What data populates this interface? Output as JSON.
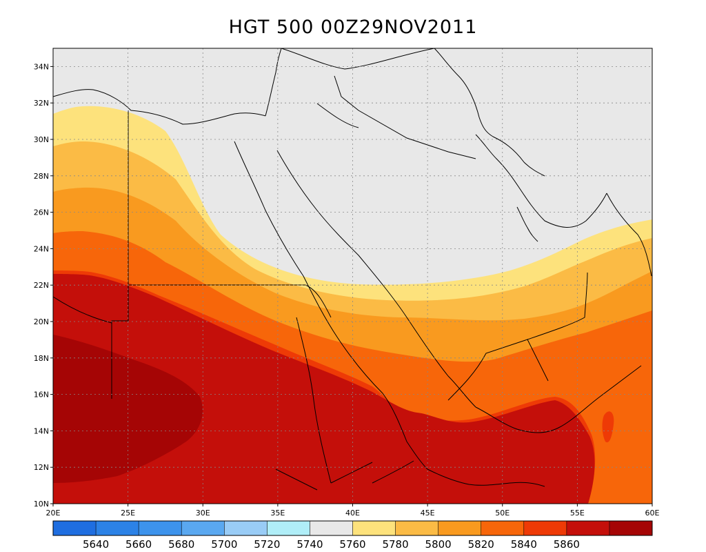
{
  "title": "HGT 500 00Z29NOV2011",
  "map": {
    "lon_range": [
      20,
      60
    ],
    "lat_range": [
      10,
      35
    ],
    "lon_ticks": [
      {
        "v": 20,
        "label": "20E"
      },
      {
        "v": 25,
        "label": "25E"
      },
      {
        "v": 30,
        "label": "30E"
      },
      {
        "v": 35,
        "label": "35E"
      },
      {
        "v": 40,
        "label": "40E"
      },
      {
        "v": 45,
        "label": "45E"
      },
      {
        "v": 50,
        "label": "50E"
      },
      {
        "v": 55,
        "label": "55E"
      },
      {
        "v": 60,
        "label": "60E"
      }
    ],
    "lat_ticks": [
      {
        "v": 10,
        "label": "10N"
      },
      {
        "v": 12,
        "label": "12N"
      },
      {
        "v": 14,
        "label": "14N"
      },
      {
        "v": 16,
        "label": "16N"
      },
      {
        "v": 18,
        "label": "18N"
      },
      {
        "v": 20,
        "label": "20N"
      },
      {
        "v": 22,
        "label": "22N"
      },
      {
        "v": 24,
        "label": "24N"
      },
      {
        "v": 26,
        "label": "26N"
      },
      {
        "v": 28,
        "label": "28N"
      },
      {
        "v": 30,
        "label": "30N"
      },
      {
        "v": 32,
        "label": "32N"
      },
      {
        "v": 34,
        "label": "34N"
      }
    ],
    "grid": true
  },
  "colorbar": {
    "colors": [
      "#1f6ee0",
      "#2c82e6",
      "#3d93ec",
      "#5aa8f0",
      "#99ccf6",
      "#b0eef8",
      "#e8e8e8",
      "#fde27c",
      "#fbbb45",
      "#f99a1f",
      "#f7660a",
      "#ee3a06",
      "#c40f0a",
      "#a50505"
    ],
    "labels": [
      "5640",
      "5660",
      "5680",
      "5700",
      "5720",
      "5740",
      "5760",
      "5780",
      "5800",
      "5820",
      "5840",
      "5860"
    ]
  }
}
